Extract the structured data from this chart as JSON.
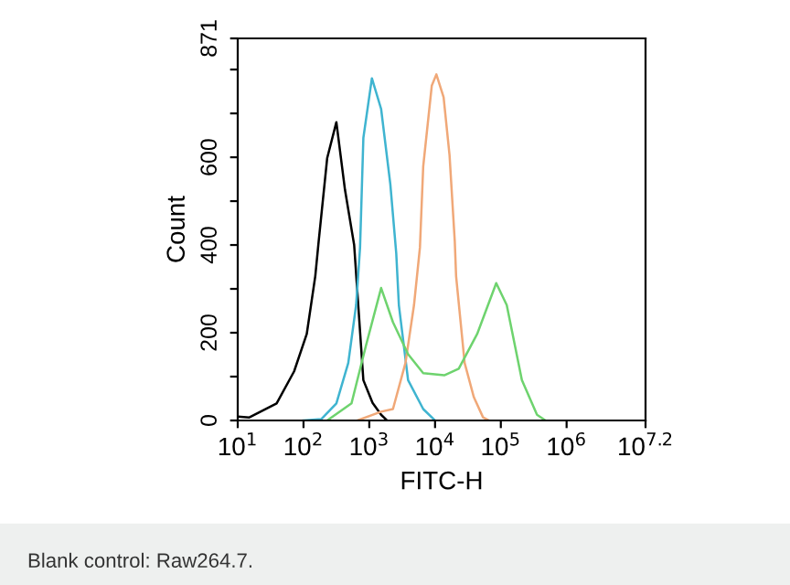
{
  "chart_data": {
    "type": "line",
    "xlabel": "FITC-H",
    "ylabel": "Count",
    "log": "x",
    "xlim": [
      10,
      15848932
    ],
    "ylim": [
      0,
      871
    ],
    "xticks": [
      {
        "value": 10,
        "label": "10$^{1}$"
      },
      {
        "value": 100,
        "label": "10$^{2}$"
      },
      {
        "value": 1000,
        "label": "10$^{3}$"
      },
      {
        "value": 10000,
        "label": "10$^{4}$"
      },
      {
        "value": 100000,
        "label": "10$^{5}$"
      },
      {
        "value": 1000000,
        "label": "10$^{6}$"
      },
      {
        "value": 15848932,
        "label": "10$^{7.2}$"
      }
    ],
    "yticks": [
      0,
      {
        "value": 100,
        "label": null
      },
      200,
      {
        "value": 300,
        "label": null
      },
      400,
      {
        "value": 500,
        "label": null
      },
      600,
      {
        "value": 700,
        "label": null
      },
      {
        "value": 800,
        "label": null
      },
      871
    ],
    "grid": false,
    "marker": "none",
    "line_style": "solid",
    "annotations": [
      "Blank control: Raw264.7."
    ],
    "series": [
      {
        "color": "#000000",
        "x": [
          10,
          15,
          39,
          72,
          112,
          151,
          170,
          229,
          316,
          427,
          589,
          813,
          1122,
          1514,
          1862
        ],
        "values": [
          9,
          7,
          39,
          112,
          197,
          329,
          408,
          598,
          680,
          526,
          400,
          92,
          40,
          13,
          0
        ]
      },
      {
        "color": "#3fb4d0",
        "x": [
          100,
          186,
          316,
          479,
          631,
          724,
          813,
          1096,
          1514,
          2089,
          2570,
          2818,
          3890,
          6607,
          10000
        ],
        "values": [
          0,
          3,
          39,
          131,
          263,
          394,
          644,
          780,
          710,
          539,
          381,
          263,
          92,
          26,
          0
        ]
      },
      {
        "color": "#f0a878",
        "x": [
          661,
          1514,
          2291,
          3548,
          4786,
          5888,
          6607,
          8913,
          10470,
          13490,
          16600,
          19950,
          20890,
          28180,
          38900,
          53700,
          66070
        ],
        "values": [
          0,
          20,
          26,
          131,
          263,
          394,
          579,
          763,
          789,
          737,
          605,
          408,
          329,
          131,
          53,
          7,
          0
        ]
      },
      {
        "color": "#6ed36e",
        "x": [
          229,
          537,
          891,
          1514,
          2291,
          3890,
          6607,
          13800,
          22910,
          43650,
          85110,
          123000,
          208900,
          354800,
          478600
        ],
        "values": [
          0,
          39,
          171,
          302,
          224,
          151,
          108,
          103,
          118,
          197,
          313,
          263,
          92,
          13,
          0
        ]
      }
    ]
  }
}
